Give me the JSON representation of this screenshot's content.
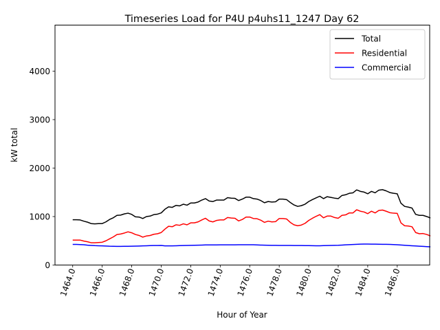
{
  "chart_data": {
    "type": "line",
    "title": "Timeseries Load for P4U p4uhs11_1247  Day 62",
    "xlabel": "Hour of Year",
    "ylabel": "kW total",
    "xlim": [
      1462.8,
      1488.2
    ],
    "ylim": [
      0,
      4950
    ],
    "xticks": [
      1464,
      1466,
      1468,
      1470,
      1472,
      1474,
      1476,
      1478,
      1480,
      1482,
      1484,
      1486
    ],
    "xtick_labels": [
      "1464.0",
      "1466.0",
      "1468.0",
      "1470.0",
      "1472.0",
      "1474.0",
      "1476.0",
      "1478.0",
      "1480.0",
      "1482.0",
      "1484.0",
      "1486.0"
    ],
    "yticks": [
      0,
      1000,
      2000,
      3000,
      4000
    ],
    "ytick_labels": [
      "0",
      "1000",
      "2000",
      "3000",
      "4000"
    ],
    "grid": false,
    "legend_position": "top-right",
    "x_start": 1464.0,
    "x_step": 0.25,
    "series": [
      {
        "name": "Total",
        "color": "#000000",
        "values": [
          935,
          935,
          930,
          905,
          885,
          855,
          850,
          855,
          855,
          890,
          940,
          975,
          1025,
          1030,
          1055,
          1070,
          1045,
          995,
          990,
          960,
          1000,
          1010,
          1040,
          1050,
          1075,
          1150,
          1200,
          1190,
          1230,
          1220,
          1255,
          1235,
          1280,
          1280,
          1300,
          1340,
          1370,
          1320,
          1310,
          1340,
          1340,
          1340,
          1390,
          1380,
          1375,
          1330,
          1360,
          1400,
          1400,
          1370,
          1360,
          1330,
          1285,
          1310,
          1300,
          1305,
          1360,
          1360,
          1350,
          1290,
          1240,
          1210,
          1225,
          1255,
          1310,
          1350,
          1385,
          1420,
          1370,
          1410,
          1395,
          1380,
          1370,
          1435,
          1450,
          1480,
          1490,
          1550,
          1520,
          1505,
          1470,
          1520,
          1490,
          1545,
          1555,
          1530,
          1495,
          1480,
          1470,
          1275,
          1210,
          1195,
          1175,
          1045,
          1025,
          1025,
          1000,
          970
        ]
      },
      {
        "name": "Residential",
        "color": "#ff0000",
        "values": [
          515,
          515,
          515,
          495,
          480,
          460,
          460,
          465,
          470,
          500,
          540,
          580,
          630,
          640,
          660,
          685,
          665,
          630,
          610,
          575,
          600,
          610,
          635,
          645,
          670,
          740,
          800,
          790,
          830,
          820,
          850,
          830,
          870,
          870,
          890,
          930,
          965,
          910,
          890,
          920,
          930,
          930,
          980,
          970,
          965,
          910,
          940,
          990,
          990,
          960,
          955,
          925,
          880,
          905,
          890,
          895,
          960,
          960,
          950,
          880,
          830,
          810,
          825,
          860,
          920,
          965,
          1005,
          1040,
          975,
          1010,
          1010,
          980,
          965,
          1025,
          1035,
          1075,
          1075,
          1140,
          1110,
          1095,
          1060,
          1110,
          1075,
          1125,
          1135,
          1110,
          1080,
          1070,
          1065,
          870,
          810,
          805,
          790,
          670,
          645,
          650,
          630,
          600
        ]
      },
      {
        "name": "Commercial",
        "color": "#0000ff",
        "values": [
          425,
          425,
          422,
          418,
          410,
          405,
          400,
          398,
          395,
          392,
          388,
          386,
          385,
          385,
          386,
          387,
          388,
          390,
          392,
          395,
          398,
          400,
          402,
          403,
          404,
          395,
          395,
          395,
          398,
          400,
          402,
          404,
          406,
          408,
          410,
          412,
          414,
          414,
          415,
          415,
          416,
          416,
          416,
          416,
          417,
          418,
          418,
          418,
          418,
          418,
          415,
          412,
          410,
          408,
          406,
          406,
          405,
          405,
          405,
          404,
          403,
          402,
          402,
          401,
          400,
          399,
          398,
          398,
          400,
          402,
          404,
          406,
          408,
          412,
          416,
          420,
          424,
          428,
          430,
          432,
          432,
          431,
          430,
          429,
          428,
          427,
          425,
          422,
          418,
          413,
          408,
          403,
          398,
          393,
          388,
          384,
          380,
          376
        ]
      }
    ]
  }
}
